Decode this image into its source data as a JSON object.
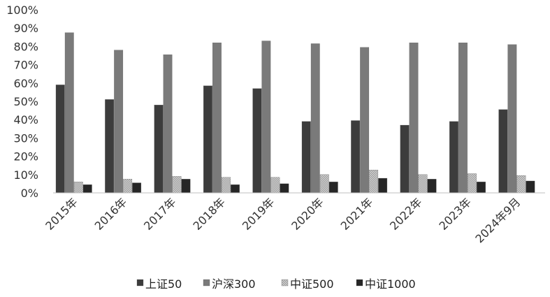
{
  "chart_data": {
    "type": "bar",
    "categories": [
      "2015年",
      "2016年",
      "2017年",
      "2018年",
      "2019年",
      "2020年",
      "2021年",
      "2022年",
      "2023年",
      "2024年9月"
    ],
    "series": [
      {
        "name": "上证50",
        "color": "#3c3c3c",
        "values": [
          59,
          51,
          48,
          58.5,
          57,
          39,
          39.5,
          37,
          39,
          45.5
        ]
      },
      {
        "name": "沪深300",
        "color": "#7a7a7a",
        "values": [
          87.5,
          78,
          75.5,
          82,
          83,
          81.5,
          79.5,
          82,
          82,
          81
        ]
      },
      {
        "name": "中证500",
        "color": "#bdbdbd",
        "pattern": "dotted",
        "values": [
          6,
          7.5,
          9,
          8.5,
          8.5,
          10,
          12.5,
          10,
          10.5,
          9.5
        ]
      },
      {
        "name": "中证1000",
        "color": "#262626",
        "values": [
          4.5,
          5.5,
          7.5,
          4.5,
          5,
          6,
          8,
          7.5,
          6,
          6.5
        ]
      }
    ],
    "yaxis": {
      "min": 0,
      "max": 100,
      "ticks": [
        0,
        10,
        20,
        30,
        40,
        50,
        60,
        70,
        80,
        90,
        100
      ],
      "tick_labels": [
        "0%",
        "10%",
        "20%",
        "30%",
        "40%",
        "50%",
        "60%",
        "70%",
        "80%",
        "90%",
        "100%"
      ]
    },
    "title": "",
    "xlabel": "",
    "ylabel": "",
    "grid": false,
    "legend_position": "bottom"
  }
}
